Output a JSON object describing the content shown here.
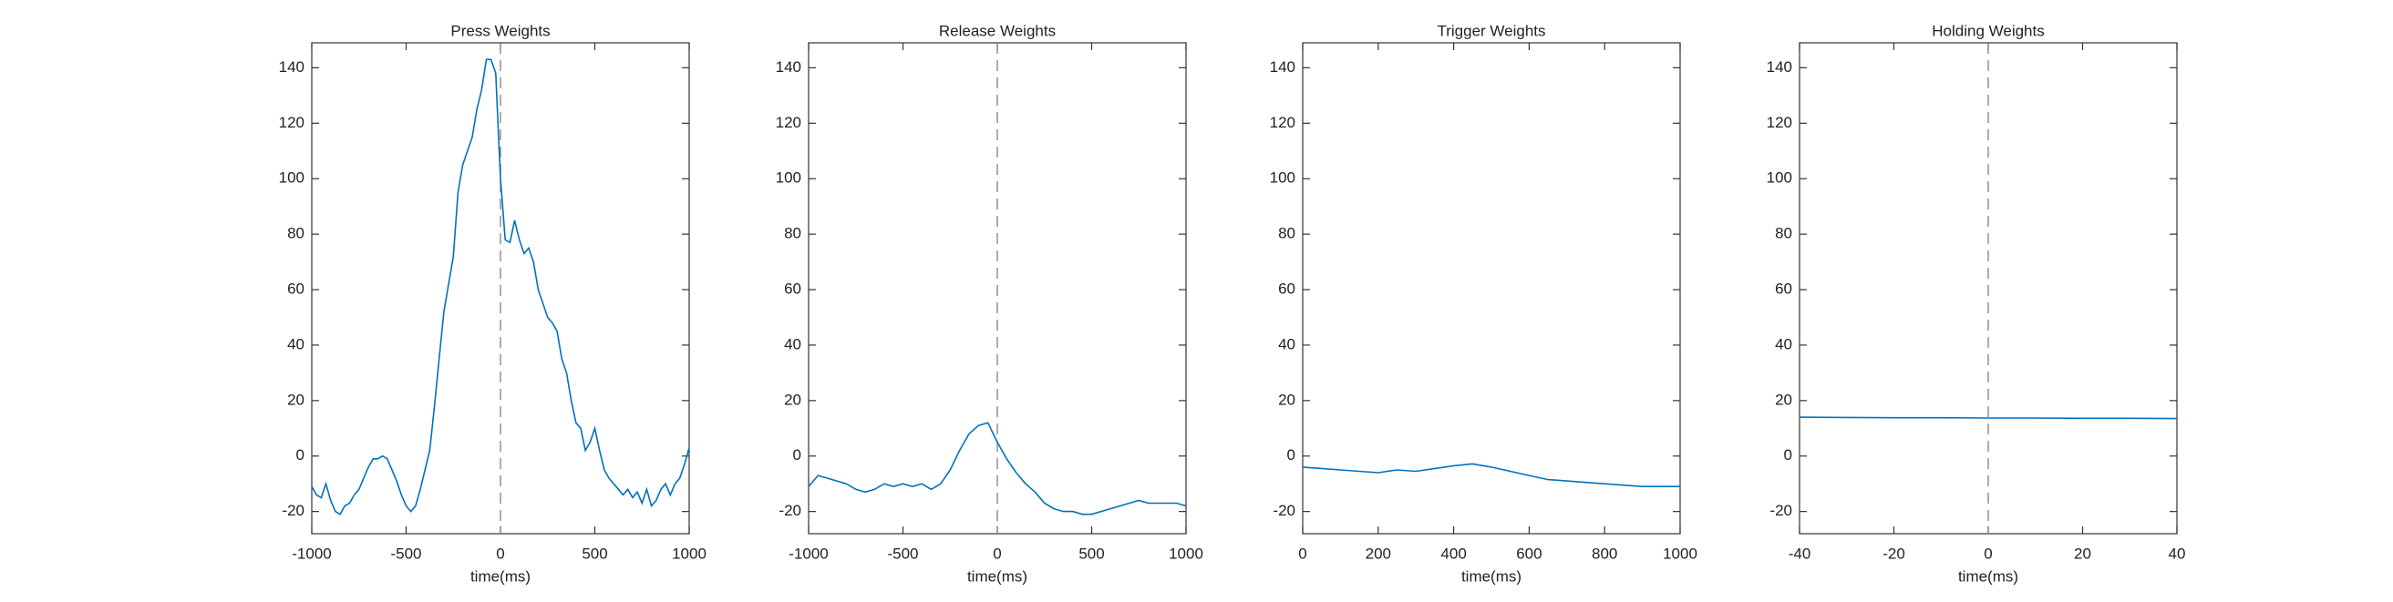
{
  "chart_data": [
    {
      "type": "line",
      "title": "Press Weights",
      "xlabel": "time(ms)",
      "color": "#0072bd",
      "vline": 0,
      "x": [
        -1000,
        -975,
        -950,
        -925,
        -900,
        -875,
        -850,
        -825,
        -800,
        -775,
        -750,
        -725,
        -700,
        -675,
        -650,
        -625,
        -600,
        -575,
        -550,
        -525,
        -500,
        -475,
        -450,
        -425,
        -400,
        -375,
        -350,
        -325,
        -300,
        -275,
        -250,
        -225,
        -200,
        -175,
        -150,
        -125,
        -100,
        -75,
        -50,
        -25,
        0,
        25,
        50,
        75,
        100,
        125,
        150,
        175,
        200,
        225,
        250,
        275,
        300,
        325,
        350,
        375,
        400,
        425,
        450,
        475,
        500,
        525,
        550,
        575,
        600,
        625,
        650,
        675,
        700,
        725,
        750,
        775,
        800,
        825,
        850,
        875,
        900,
        925,
        950,
        975,
        1000
      ],
      "values": [
        -11,
        -14,
        -15,
        -10,
        -16,
        -20,
        -21,
        -18,
        -17,
        -14,
        -12,
        -8,
        -4,
        -1,
        -1,
        0,
        -1,
        -5,
        -9,
        -14,
        -18,
        -20,
        -18,
        -12,
        -5,
        2,
        18,
        35,
        52,
        62,
        72,
        95,
        105,
        110,
        115,
        125,
        132,
        143,
        143,
        138,
        100,
        78,
        77,
        85,
        78,
        73,
        75,
        70,
        60,
        55,
        50,
        48,
        45,
        35,
        30,
        20,
        12,
        10,
        2,
        5,
        10,
        2,
        -5,
        -8,
        -10,
        -12,
        -14,
        -12,
        -15,
        -13,
        -17,
        -12,
        -18,
        -16,
        -12,
        -10,
        -14,
        -10,
        -8,
        -3,
        3
      ],
      "xlim": [
        -1000,
        1000
      ],
      "ylim": [
        -28,
        149
      ],
      "xticks": [
        -1000,
        -500,
        0,
        500,
        1000
      ],
      "yticks": [
        -20,
        0,
        20,
        40,
        60,
        80,
        100,
        120,
        140
      ]
    },
    {
      "type": "line",
      "title": "Release Weights",
      "xlabel": "time(ms)",
      "color": "#0072bd",
      "vline": 0,
      "x": [
        -1000,
        -950,
        -900,
        -850,
        -800,
        -750,
        -700,
        -650,
        -600,
        -550,
        -500,
        -450,
        -400,
        -350,
        -300,
        -250,
        -200,
        -150,
        -100,
        -50,
        0,
        50,
        100,
        150,
        200,
        250,
        300,
        350,
        400,
        450,
        500,
        550,
        600,
        650,
        700,
        750,
        800,
        850,
        900,
        950,
        1000
      ],
      "values": [
        -11,
        -7,
        -8,
        -9,
        -10,
        -12,
        -13,
        -12,
        -10,
        -11,
        -10,
        -11,
        -10,
        -12,
        -10,
        -5,
        2,
        8,
        11,
        12,
        5,
        -1,
        -6,
        -10,
        -13,
        -17,
        -19,
        -20,
        -20,
        -21,
        -21,
        -20,
        -19,
        -18,
        -17,
        -16,
        -17,
        -17,
        -17,
        -17,
        -18
      ],
      "xlim": [
        -1000,
        1000
      ],
      "ylim": [
        -28,
        149
      ],
      "xticks": [
        -1000,
        -500,
        0,
        500,
        1000
      ],
      "yticks": [
        -20,
        0,
        20,
        40,
        60,
        80,
        100,
        120,
        140
      ]
    },
    {
      "type": "line",
      "title": "Trigger Weights",
      "xlabel": "time(ms)",
      "color": "#0072bd",
      "x": [
        0,
        50,
        100,
        150,
        200,
        250,
        300,
        350,
        400,
        450,
        500,
        550,
        600,
        650,
        700,
        750,
        800,
        850,
        900,
        950,
        1000
      ],
      "values": [
        -4,
        -4.5,
        -5,
        -5.5,
        -6,
        -5,
        -5.5,
        -4.5,
        -3.5,
        -2.8,
        -4,
        -5.5,
        -7,
        -8.5,
        -9,
        -9.5,
        -10,
        -10.5,
        -11,
        -11,
        -11
      ],
      "xlim": [
        0,
        1000
      ],
      "ylim": [
        -28,
        149
      ],
      "xticks": [
        0,
        200,
        400,
        600,
        800,
        1000
      ],
      "yticks": [
        -20,
        0,
        20,
        40,
        60,
        80,
        100,
        120,
        140
      ]
    },
    {
      "type": "line",
      "title": "Holding Weights",
      "xlabel": "time(ms)",
      "color": "#0072bd",
      "vline": 0,
      "x": [
        -40,
        -30,
        -20,
        -10,
        0,
        10,
        20,
        30,
        40
      ],
      "values": [
        14,
        13.9,
        13.8,
        13.8,
        13.7,
        13.7,
        13.6,
        13.6,
        13.5
      ],
      "xlim": [
        -40,
        40
      ],
      "ylim": [
        -28,
        149
      ],
      "xticks": [
        -40,
        -20,
        0,
        20,
        40
      ],
      "yticks": [
        -20,
        0,
        20,
        40,
        60,
        80,
        100,
        120,
        140
      ]
    }
  ]
}
